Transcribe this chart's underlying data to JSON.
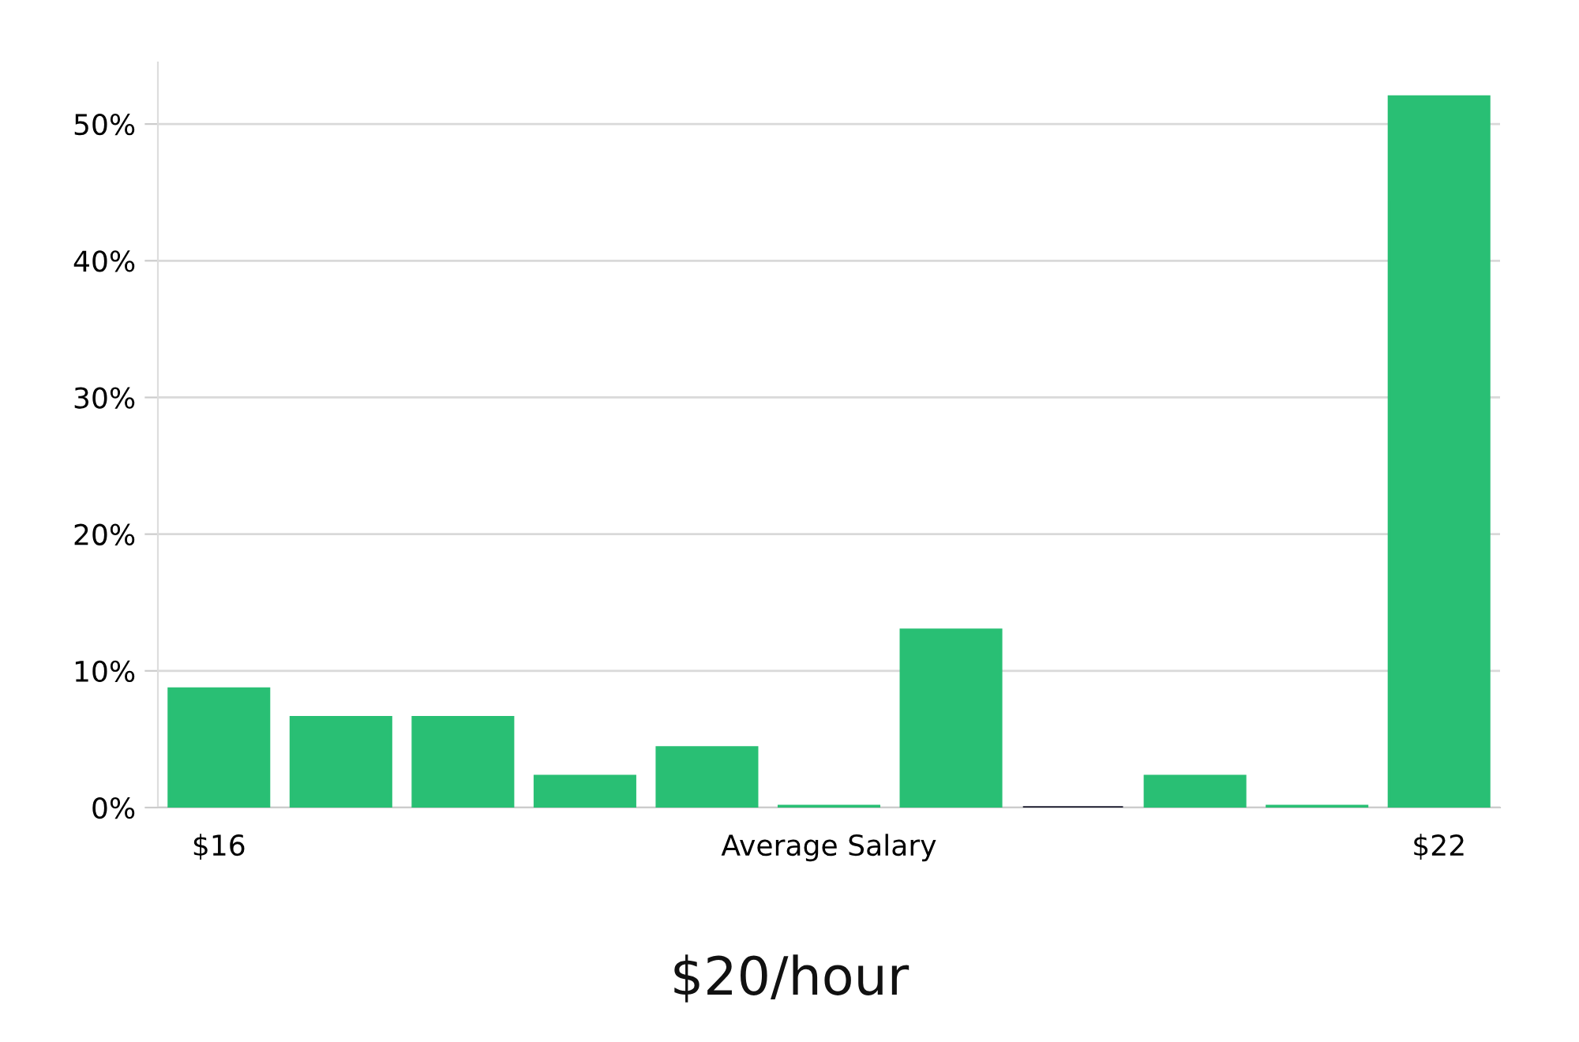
{
  "chart_data": {
    "type": "bar",
    "title": "$20/hour",
    "categories": [
      "$16",
      null,
      null,
      null,
      null,
      "Average Salary",
      null,
      null,
      null,
      null,
      "$22"
    ],
    "values": [
      8.7,
      6.6,
      6.6,
      2.3,
      4.4,
      0.1,
      13,
      0,
      2.3,
      0.1,
      52
    ],
    "colors": [
      "#29bf74",
      "#29bf74",
      "#29bf74",
      "#29bf74",
      "#29bf74",
      "#29bf74",
      "#29bf74",
      "#1a1a2e",
      "#29bf74",
      "#29bf74",
      "#29bf74"
    ],
    "ylim": [
      0,
      54.5
    ],
    "yticks": [
      {
        "value": 0,
        "label": "0%"
      },
      {
        "value": 10,
        "label": "10%"
      },
      {
        "value": 20,
        "label": "20%"
      },
      {
        "value": 30,
        "label": "30%"
      },
      {
        "value": 40,
        "label": "40%"
      },
      {
        "value": 50,
        "label": "50%"
      }
    ],
    "grid": "y",
    "legend": false
  }
}
